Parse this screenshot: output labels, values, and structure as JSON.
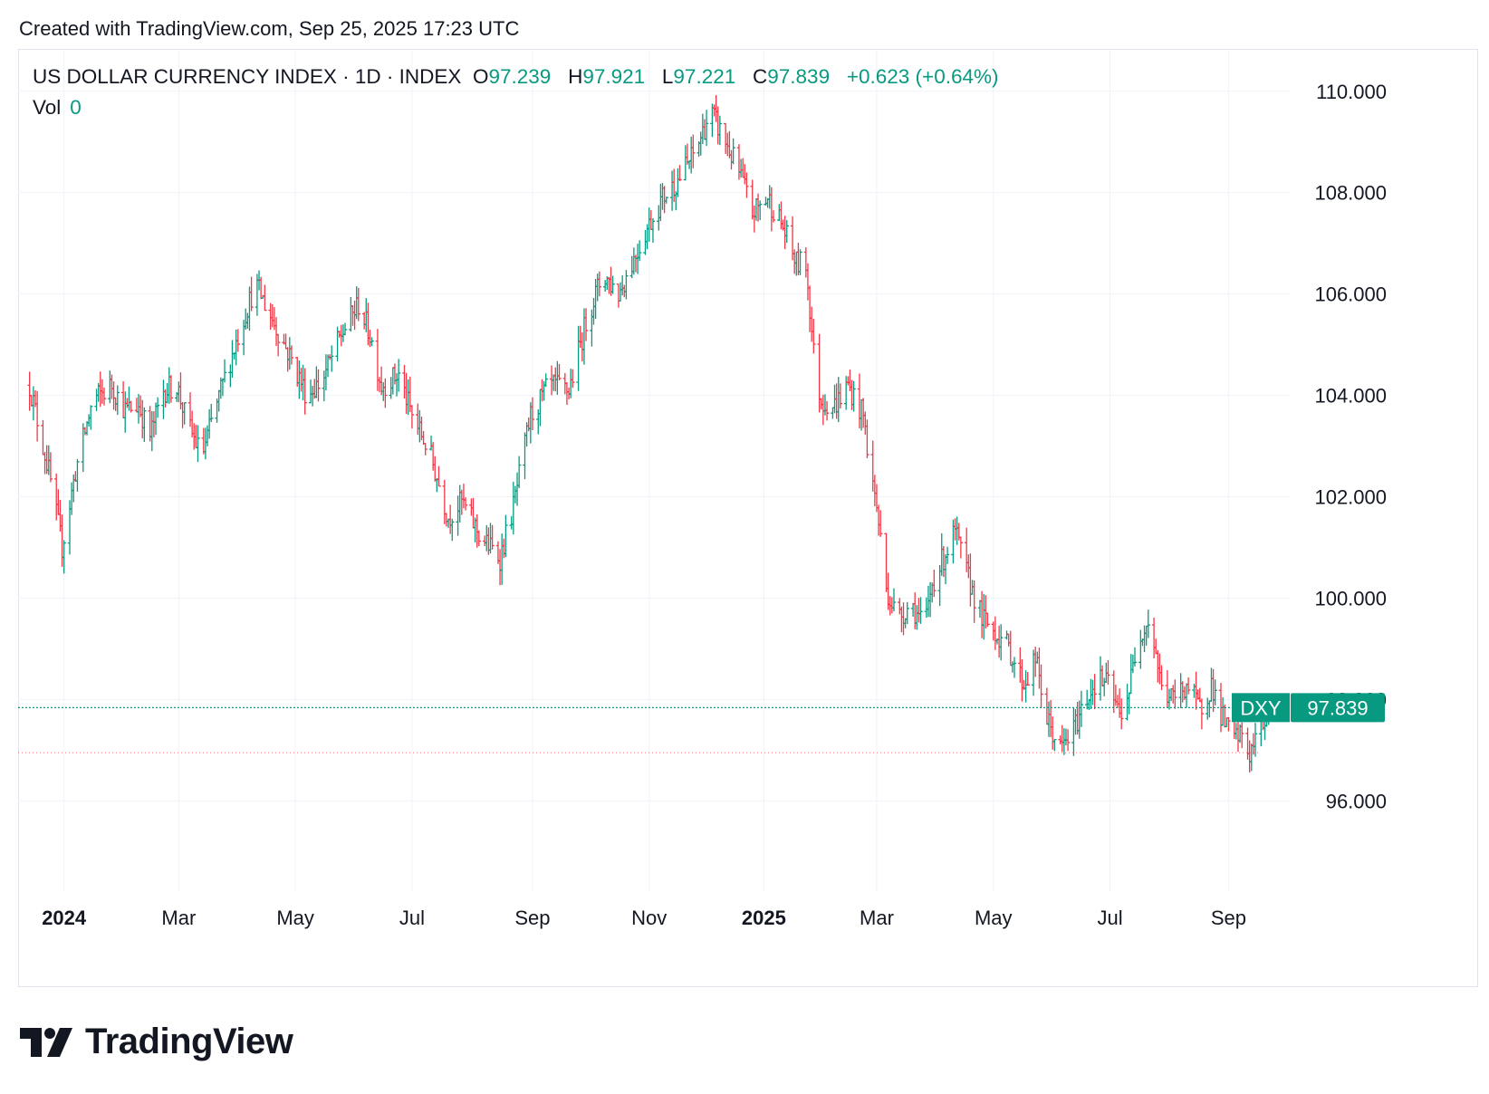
{
  "header": {
    "created_text": "Created with TradingView.com, Sep 25, 2025 17:23 UTC"
  },
  "legend": {
    "symbol": "US DOLLAR CURRENCY INDEX · 1D · INDEX",
    "open_label": "O",
    "open_value": "97.239",
    "high_label": "H",
    "high_value": "97.921",
    "low_label": "L",
    "low_value": "97.221",
    "close_label": "C",
    "close_value": "97.839",
    "change": "+0.623 (+0.64%)",
    "vol_label": "Vol",
    "vol_value": "0"
  },
  "colors": {
    "up": "#089981",
    "down": "#f23645",
    "grid": "#f0f3fa",
    "text": "#131722"
  },
  "branding": {
    "logo_text": "TradingView"
  },
  "chart_data": {
    "type": "ohlc",
    "title": "US DOLLAR CURRENCY INDEX · 1D · INDEX",
    "ylim": [
      94.2,
      110.8
    ],
    "y_ticks": [
      "96.000",
      "98.000",
      "100.000",
      "102.000",
      "104.000",
      "106.000",
      "108.000",
      "110.000"
    ],
    "y_tick_values": [
      96,
      98,
      100,
      102,
      104,
      106,
      108,
      110
    ],
    "x_ticks": [
      {
        "label": "2024",
        "day": 18,
        "bold": true
      },
      {
        "label": "Mar",
        "day": 78,
        "bold": false
      },
      {
        "label": "May",
        "day": 139,
        "bold": false
      },
      {
        "label": "Jul",
        "day": 200,
        "bold": false
      },
      {
        "label": "Sep",
        "day": 263,
        "bold": false
      },
      {
        "label": "Nov",
        "day": 324,
        "bold": false
      },
      {
        "label": "2025",
        "day": 384,
        "bold": true
      },
      {
        "label": "Mar",
        "day": 443,
        "bold": false
      },
      {
        "label": "May",
        "day": 504,
        "bold": false
      },
      {
        "label": "Jul",
        "day": 565,
        "bold": false
      },
      {
        "label": "Sep",
        "day": 627,
        "bold": false
      }
    ],
    "x_range_days": [
      -6,
      659
    ],
    "last_price": {
      "symbol": "DXY",
      "value": "97.839",
      "price": 97.839
    },
    "ref_price": 96.95,
    "anchors": [
      [
        0,
        104.2
      ],
      [
        10,
        102.5
      ],
      [
        17,
        101.0
      ],
      [
        24,
        102.5
      ],
      [
        33,
        103.9
      ],
      [
        43,
        104.2
      ],
      [
        50,
        103.7
      ],
      [
        57,
        103.8
      ],
      [
        63,
        103.2
      ],
      [
        70,
        104.1
      ],
      [
        77,
        104.2
      ],
      [
        82,
        103.5
      ],
      [
        90,
        102.8
      ],
      [
        100,
        104.1
      ],
      [
        110,
        105.3
      ],
      [
        118,
        106.2
      ],
      [
        127,
        105.5
      ],
      [
        137,
        104.7
      ],
      [
        145,
        104.0
      ],
      [
        153,
        104.3
      ],
      [
        163,
        105.2
      ],
      [
        172,
        105.8
      ],
      [
        178,
        105.2
      ],
      [
        184,
        104.2
      ],
      [
        193,
        104.4
      ],
      [
        200,
        103.6
      ],
      [
        209,
        102.9
      ],
      [
        219,
        101.6
      ],
      [
        226,
        101.9
      ],
      [
        236,
        101.2
      ],
      [
        246,
        100.8
      ],
      [
        253,
        101.8
      ],
      [
        262,
        103.6
      ],
      [
        272,
        104.2
      ],
      [
        282,
        104.1
      ],
      [
        292,
        105.6
      ],
      [
        300,
        106.4
      ],
      [
        308,
        106.0
      ],
      [
        316,
        106.7
      ],
      [
        323,
        107.3
      ],
      [
        331,
        107.9
      ],
      [
        338,
        108.2
      ],
      [
        348,
        108.8
      ],
      [
        356,
        109.6
      ],
      [
        364,
        109.0
      ],
      [
        372,
        108.3
      ],
      [
        378,
        107.6
      ],
      [
        386,
        107.9
      ],
      [
        393,
        107.4
      ],
      [
        401,
        106.6
      ],
      [
        406,
        106.6
      ],
      [
        411,
        104.4
      ],
      [
        414,
        103.9
      ],
      [
        421,
        103.8
      ],
      [
        428,
        104.2
      ],
      [
        436,
        103.6
      ],
      [
        439,
        102.7
      ],
      [
        443,
        101.8
      ],
      [
        448,
        100.2
      ],
      [
        454,
        99.6
      ],
      [
        461,
        99.9
      ],
      [
        468,
        99.4
      ],
      [
        472,
        100.3
      ],
      [
        478,
        100.8
      ],
      [
        484,
        101.3
      ],
      [
        490,
        100.5
      ],
      [
        498,
        99.6
      ],
      [
        506,
        99.3
      ],
      [
        512,
        99.0
      ],
      [
        520,
        98.3
      ],
      [
        526,
        98.8
      ],
      [
        532,
        97.6
      ],
      [
        539,
        97.0
      ],
      [
        546,
        97.4
      ],
      [
        551,
        97.9
      ],
      [
        558,
        98.4
      ],
      [
        564,
        98.3
      ],
      [
        570,
        97.7
      ],
      [
        575,
        98.2
      ],
      [
        580,
        99.3
      ],
      [
        586,
        99.6
      ],
      [
        592,
        98.2
      ],
      [
        598,
        98.0
      ],
      [
        605,
        98.3
      ],
      [
        612,
        97.8
      ],
      [
        618,
        98.3
      ],
      [
        623,
        97.7
      ],
      [
        629,
        97.2
      ],
      [
        634,
        97.3
      ],
      [
        638,
        96.9
      ],
      [
        643,
        97.4
      ],
      [
        650,
        97.84
      ]
    ]
  }
}
